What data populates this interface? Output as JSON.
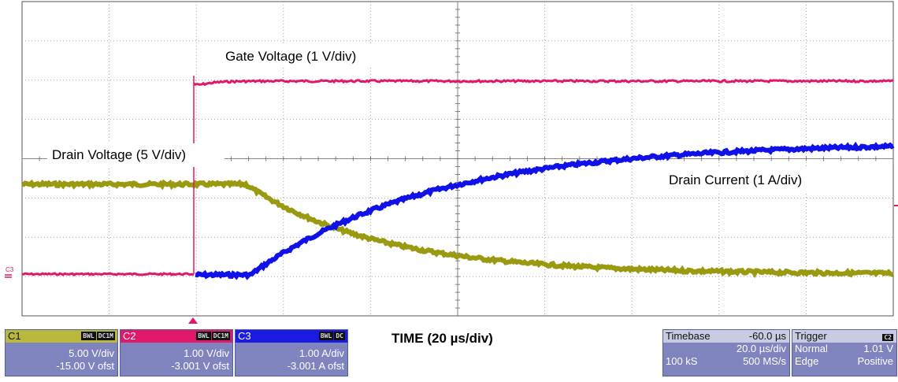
{
  "traces": {
    "gate_label": "Gate Voltage (1 V/div)",
    "drain_voltage_label": "Drain Voltage (5 V/div)",
    "drain_current_label": "Drain Current (1 A/div)",
    "colors": {
      "gate": "#e0186a",
      "drain_voltage": "#9a9a10",
      "drain_current": "#1010e8"
    }
  },
  "marker": "C3",
  "timebase_caption": "TIME (20 µs/div)",
  "channels": [
    {
      "name": "C1",
      "badge1": "BWL",
      "badge2": "DC1M",
      "scale": "5.00 V/div",
      "offset": "-15.00 V ofst",
      "color": "#b8b83c"
    },
    {
      "name": "C2",
      "badge1": "BWL",
      "badge2": "DC1M",
      "scale": "1.00 V/div",
      "offset": "-3.001 V ofst",
      "color": "#e0186a"
    },
    {
      "name": "C3",
      "badge1": "BWL",
      "badge2": "DC",
      "scale": "1.00 A/div",
      "offset": "-3.001 A ofst",
      "color": "#1a1ae0"
    }
  ],
  "timebase": {
    "title": "Timebase",
    "delay": "-60.0 µs",
    "per_div": "20.0 µs/div",
    "samples": "100 kS",
    "rate": "500 MS/s"
  },
  "trigger": {
    "title": "Trigger",
    "source": "C2",
    "mode": "Normal",
    "level": "1.01 V",
    "type": "Edge",
    "slope": "Positive"
  }
}
